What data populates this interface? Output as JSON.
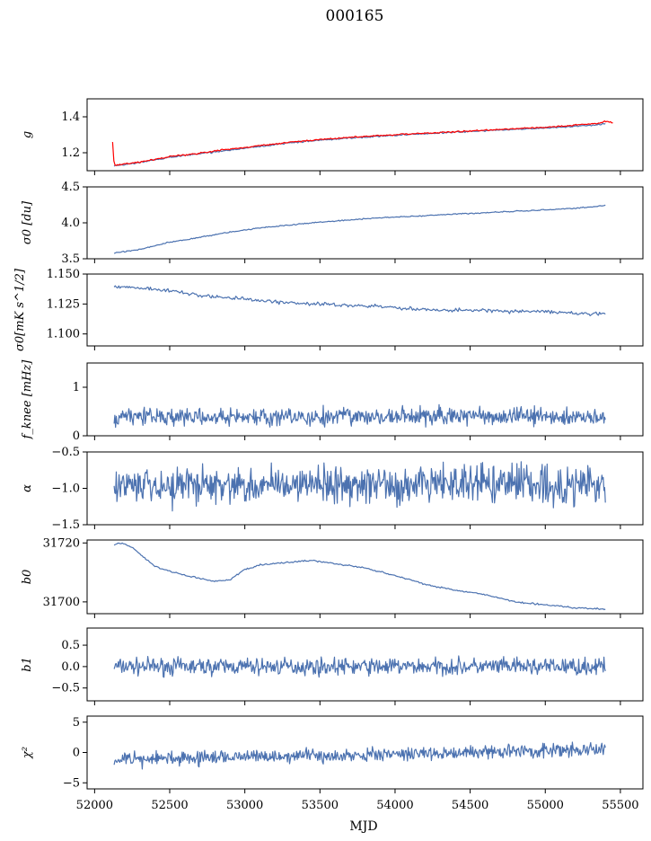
{
  "title": "000165",
  "chart_data": [
    {
      "type": "line",
      "ylabel": "g",
      "ylim": [
        1.1,
        1.5
      ],
      "yticks": [
        "1.2",
        "1.4"
      ],
      "ytick_vals": [
        1.2,
        1.4
      ],
      "series": [
        {
          "color": "#4c72b0",
          "kind": "trend",
          "x": [
            52130,
            52300,
            52500,
            52700,
            52900,
            53100,
            53300,
            53500,
            53700,
            53900,
            54100,
            54300,
            54500,
            54700,
            54900,
            55100,
            55300,
            55400
          ],
          "values": [
            1.125,
            1.145,
            1.175,
            1.195,
            1.215,
            1.235,
            1.255,
            1.27,
            1.282,
            1.292,
            1.302,
            1.31,
            1.318,
            1.326,
            1.334,
            1.342,
            1.352,
            1.36
          ],
          "noise": 0.004
        },
        {
          "color": "#ff0000",
          "kind": "trend",
          "x": [
            52120,
            52130,
            52300,
            52500,
            52700,
            52900,
            53100,
            53300,
            53500,
            53700,
            53900,
            54100,
            54300,
            54500,
            54700,
            54900,
            55100,
            55300,
            55420,
            55450
          ],
          "values": [
            1.26,
            1.13,
            1.148,
            1.178,
            1.198,
            1.22,
            1.24,
            1.258,
            1.274,
            1.286,
            1.296,
            1.305,
            1.313,
            1.322,
            1.33,
            1.338,
            1.346,
            1.36,
            1.375,
            1.365
          ],
          "noise": 0.004
        }
      ]
    },
    {
      "type": "line",
      "ylabel": "σ0 [du]",
      "ylim": [
        3.5,
        4.5
      ],
      "yticks": [
        "3.5",
        "4.0",
        "4.5"
      ],
      "ytick_vals": [
        3.5,
        4.0,
        4.5
      ],
      "series": [
        {
          "color": "#4c72b0",
          "kind": "trend",
          "x": [
            52130,
            52300,
            52500,
            52700,
            52900,
            53100,
            53300,
            53500,
            53700,
            53900,
            54100,
            54300,
            54500,
            54700,
            54900,
            55100,
            55300,
            55400
          ],
          "values": [
            3.58,
            3.63,
            3.73,
            3.8,
            3.87,
            3.93,
            3.97,
            4.01,
            4.04,
            4.07,
            4.09,
            4.11,
            4.13,
            4.15,
            4.17,
            4.19,
            4.22,
            4.24
          ],
          "noise": 0.008
        }
      ]
    },
    {
      "type": "line",
      "ylabel": "σ0[mK s^1/2]",
      "ylim": [
        1.09,
        1.15
      ],
      "yticks": [
        "1.100",
        "1.125",
        "1.150"
      ],
      "ytick_vals": [
        1.1,
        1.125,
        1.15
      ],
      "series": [
        {
          "color": "#4c72b0",
          "kind": "trend",
          "x": [
            52130,
            52300,
            52500,
            52700,
            52900,
            53100,
            53300,
            53500,
            53700,
            53900,
            54100,
            54300,
            54500,
            54700,
            54900,
            55100,
            55300,
            55400
          ],
          "values": [
            1.14,
            1.138,
            1.136,
            1.132,
            1.13,
            1.128,
            1.126,
            1.125,
            1.124,
            1.123,
            1.121,
            1.12,
            1.12,
            1.119,
            1.119,
            1.118,
            1.117,
            1.117
          ],
          "noise": 0.0015
        }
      ]
    },
    {
      "type": "line",
      "ylabel": "f_knee [mHz]",
      "ylim": [
        0,
        1.5
      ],
      "yticks": [
        "0",
        "1"
      ],
      "ytick_vals": [
        0,
        1
      ],
      "series": [
        {
          "color": "#4c72b0",
          "kind": "noise",
          "x": [
            52130,
            55400
          ],
          "values": [
            0.4,
            0.4
          ],
          "noise": 0.11,
          "seed": 3
        }
      ]
    },
    {
      "type": "line",
      "ylabel": "α",
      "ylim": [
        -1.5,
        -0.5
      ],
      "yticks": [
        "−1.5",
        "−1.0",
        "−0.5"
      ],
      "ytick_vals": [
        -1.5,
        -1.0,
        -0.5
      ],
      "series": [
        {
          "color": "#4c72b0",
          "kind": "noise",
          "x": [
            52130,
            55400
          ],
          "values": [
            -0.95,
            -0.95
          ],
          "noise": 0.16,
          "seed": 5
        }
      ]
    },
    {
      "type": "line",
      "ylabel": "b0",
      "ylim": [
        31696,
        31721
      ],
      "yticks": [
        "31700",
        "31720"
      ],
      "ytick_vals": [
        31700,
        31720
      ],
      "series": [
        {
          "color": "#4c72b0",
          "kind": "trend",
          "x": [
            52130,
            52180,
            52250,
            52400,
            52600,
            52800,
            52900,
            53000,
            53100,
            53300,
            53450,
            53600,
            53800,
            54000,
            54200,
            54400,
            54600,
            54800,
            55000,
            55200,
            55400
          ],
          "values": [
            31719.5,
            31720,
            31718.5,
            31712,
            31709,
            31707,
            31707.5,
            31711,
            31712.5,
            31713.5,
            31714,
            31713,
            31711.5,
            31709,
            31706,
            31704,
            31702.5,
            31700,
            31699,
            31698,
            31697.5
          ],
          "noise": 0.25
        }
      ]
    },
    {
      "type": "line",
      "ylabel": "b1",
      "ylim": [
        -0.8,
        0.9
      ],
      "yticks": [
        "−0.5",
        "0.0",
        "0.5"
      ],
      "ytick_vals": [
        -0.5,
        0,
        0.5
      ],
      "series": [
        {
          "color": "#4c72b0",
          "kind": "noise",
          "x": [
            52130,
            55400
          ],
          "values": [
            0.0,
            0.0
          ],
          "noise": 0.12,
          "seed": 7
        }
      ]
    },
    {
      "type": "line",
      "ylabel": "χ²",
      "ylim": [
        -6,
        6
      ],
      "yticks": [
        "−5",
        "0",
        "5"
      ],
      "ytick_vals": [
        -5,
        0,
        5
      ],
      "series": [
        {
          "color": "#4c72b0",
          "kind": "noise",
          "x": [
            52130,
            55400
          ],
          "values": [
            -1.2,
            0.5
          ],
          "noise": 0.7,
          "seed": 11
        }
      ]
    }
  ],
  "xaxis": {
    "label": "MJD",
    "xlim": [
      51950,
      55650
    ],
    "ticks": [
      "52000",
      "52500",
      "53000",
      "53500",
      "54000",
      "54500",
      "55000",
      "55500"
    ],
    "tick_vals": [
      52000,
      52500,
      53000,
      53500,
      54000,
      54500,
      55000,
      55500
    ]
  }
}
